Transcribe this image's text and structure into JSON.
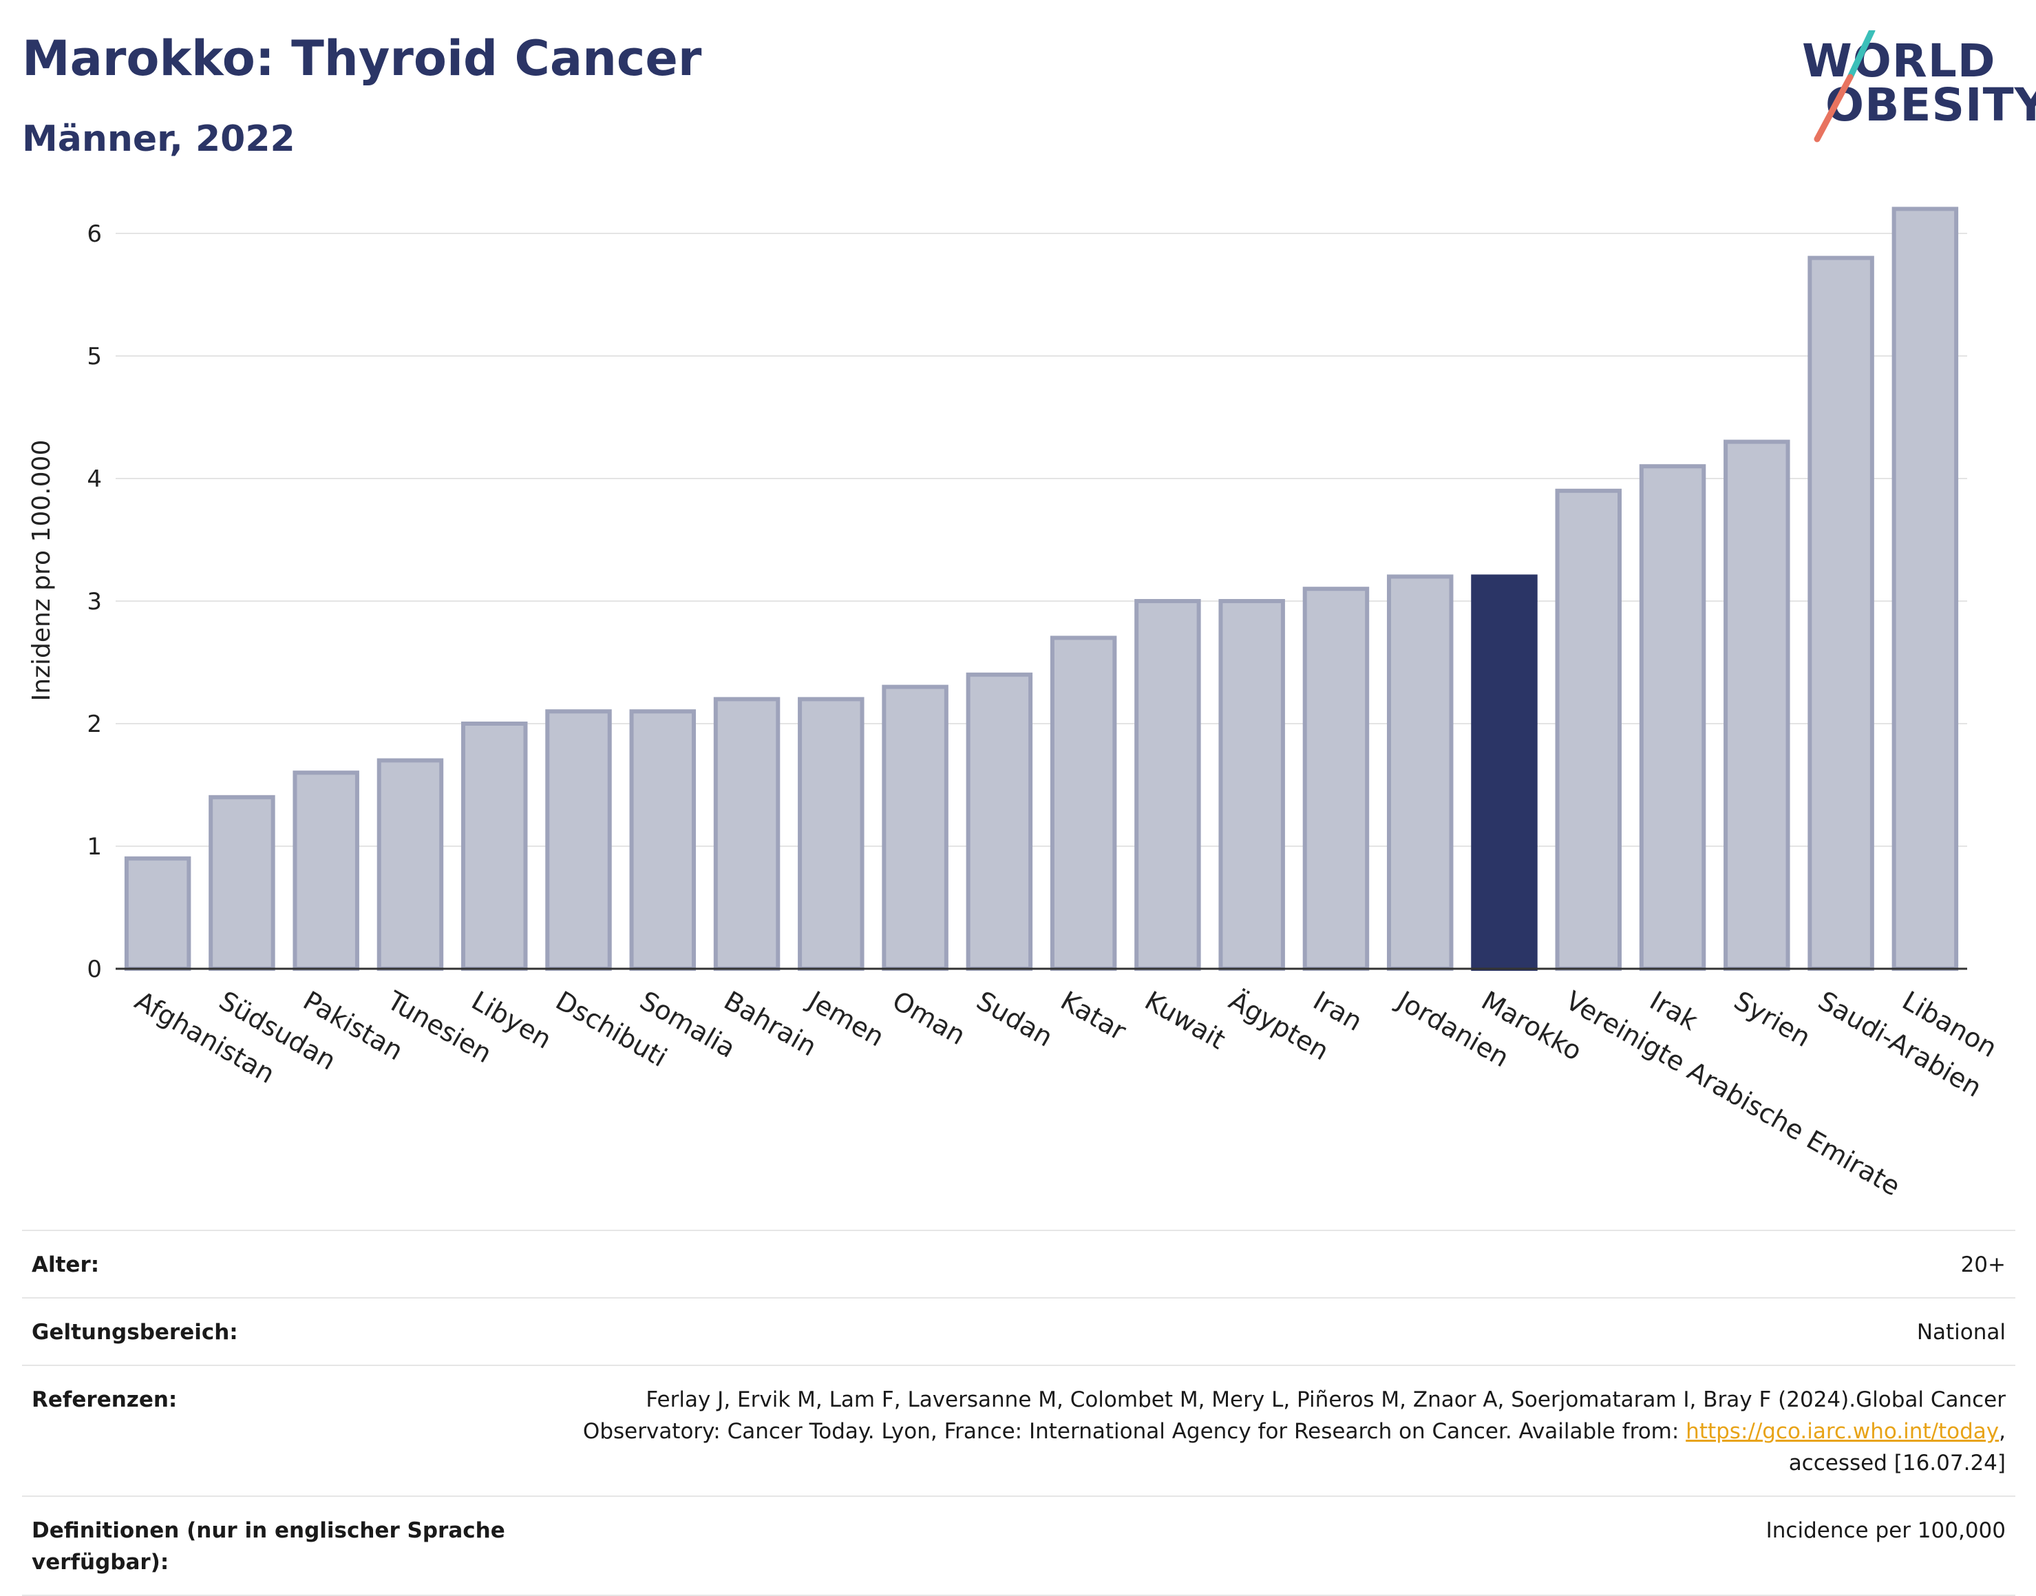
{
  "header": {
    "title": "Marokko: Thyroid Cancer",
    "subtitle": "Männer, 2022",
    "logo_line1": "WORLD",
    "logo_line2": "OBESITY"
  },
  "colors": {
    "title": "#2b3566",
    "bar_default": "#bfc3d1",
    "bar_stroke": "#9ea3bb",
    "bar_highlight": "#2b3566",
    "link": "#e8a317",
    "logo_teal": "#3bbfb9",
    "logo_coral": "#e8735f"
  },
  "chart_data": {
    "type": "bar",
    "ylabel": "Inzidenz pro 100.000",
    "xlabel": "",
    "ylim": [
      0,
      6.5
    ],
    "yticks": [
      0,
      1,
      2,
      3,
      4,
      5,
      6
    ],
    "grid": true,
    "highlight": "Marokko",
    "categories": [
      "Afghanistan",
      "Südsudan",
      "Pakistan",
      "Tunesien",
      "Libyen",
      "Dschibuti",
      "Somalia",
      "Bahrain",
      "Jemen",
      "Oman",
      "Sudan",
      "Katar",
      "Kuwait",
      "Ägypten",
      "Iran",
      "Jordanien",
      "Marokko",
      "Vereinigte Arabische Emirate",
      "Irak",
      "Syrien",
      "Saudi-Arabien",
      "Libanon"
    ],
    "values": [
      0.9,
      1.4,
      1.6,
      1.7,
      2.0,
      2.1,
      2.1,
      2.2,
      2.2,
      2.3,
      2.4,
      2.7,
      3.0,
      3.0,
      3.1,
      3.2,
      3.2,
      3.9,
      4.1,
      4.3,
      5.8,
      6.2
    ]
  },
  "meta": {
    "age_label": "Alter:",
    "age_value": "20+",
    "scope_label": "Geltungsbereich:",
    "scope_value": "National",
    "ref_label": "Referenzen:",
    "ref_text_1": "Ferlay J, Ervik M, Lam F, Laversanne M, Colombet M, Mery L, Piñeros M, Znaor A, Soerjomataram I, Bray F (2024).Global Cancer Observatory: Cancer Today. Lyon, France: International Agency for Research on Cancer. Available from: ",
    "ref_link": "https://gco.iarc.who.int/today",
    "ref_text_2": ", accessed [16.07.24]",
    "def_label": "Definitionen (nur in englischer Sprache verfügbar):",
    "def_value": "Incidence per 100,000"
  }
}
